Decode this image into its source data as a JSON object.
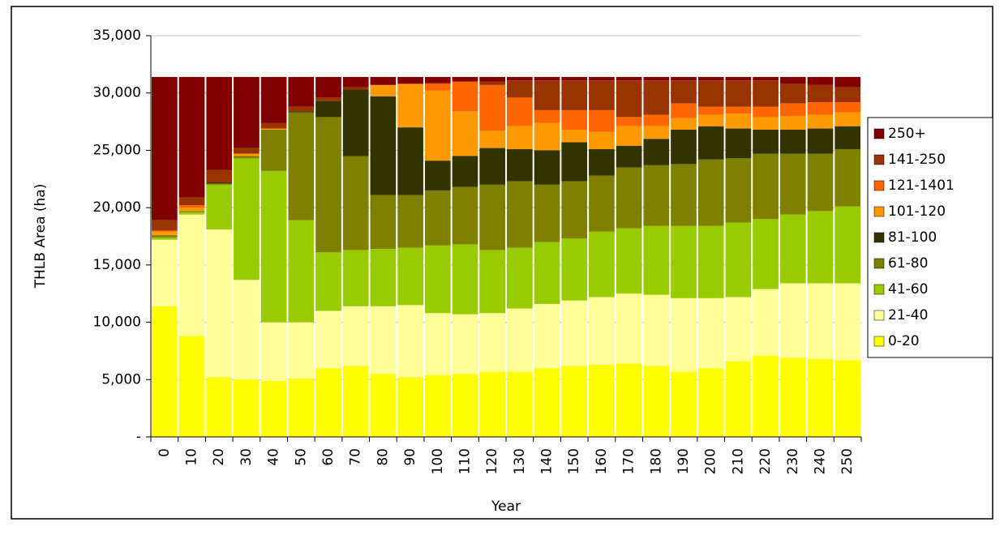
{
  "chart_data": {
    "type": "stacked_bar",
    "y_label": "THLB Area (ha)",
    "x_label": "Year",
    "categories": [
      "0",
      "10",
      "20",
      "30",
      "40",
      "50",
      "60",
      "70",
      "80",
      "90",
      "100",
      "110",
      "120",
      "130",
      "140",
      "150",
      "160",
      "170",
      "180",
      "190",
      "200",
      "210",
      "220",
      "230",
      "240",
      "250"
    ],
    "ylim": [
      0,
      35000
    ],
    "yticks": [
      {
        "value": 0,
        "label": "-"
      },
      {
        "value": 5000,
        "label": "5,000"
      },
      {
        "value": 10000,
        "label": "10,000"
      },
      {
        "value": 15000,
        "label": "15,000"
      },
      {
        "value": 20000,
        "label": "20,000"
      },
      {
        "value": 25000,
        "label": "25,000"
      },
      {
        "value": 30000,
        "label": "30,000"
      },
      {
        "value": 35000,
        "label": "35,000"
      }
    ],
    "grid": true,
    "legend": "right",
    "series": [
      {
        "name": "0-20",
        "color": "#ffff00",
        "values": [
          11400,
          8800,
          5200,
          5000,
          4900,
          5100,
          6000,
          6200,
          5500,
          5200,
          5400,
          5500,
          5700,
          5700,
          6000,
          6200,
          6300,
          6400,
          6200,
          5700,
          6000,
          6600,
          7100,
          6900,
          6800,
          6700
        ]
      },
      {
        "name": "21-40",
        "color": "#ffff99",
        "values": [
          5800,
          10600,
          12900,
          8700,
          5100,
          4900,
          5000,
          5200,
          5900,
          6300,
          5400,
          5200,
          5100,
          5500,
          5600,
          5700,
          5900,
          6100,
          6200,
          6400,
          6100,
          5600,
          5800,
          6500,
          6600,
          6700
        ]
      },
      {
        "name": "41-60",
        "color": "#99cc00",
        "values": [
          200,
          200,
          3900,
          10600,
          13200,
          8900,
          5100,
          4900,
          5000,
          5000,
          5900,
          6100,
          5500,
          5300,
          5400,
          5400,
          5700,
          5700,
          6000,
          6300,
          6300,
          6500,
          6100,
          6000,
          6300,
          6700
        ]
      },
      {
        "name": "61-80",
        "color": "#808000",
        "values": [
          200,
          100,
          100,
          200,
          3600,
          9400,
          11800,
          8200,
          4700,
          4600,
          4800,
          5000,
          5700,
          5800,
          5000,
          5000,
          4900,
          5300,
          5300,
          5400,
          5800,
          5600,
          5700,
          5300,
          5000,
          5000
        ]
      },
      {
        "name": "81-100",
        "color": "#333300",
        "values": [
          0,
          0,
          100,
          0,
          0,
          100,
          1400,
          5800,
          8600,
          5900,
          2600,
          2700,
          3200,
          2800,
          3000,
          3400,
          2300,
          1900,
          2300,
          3000,
          2900,
          2600,
          2100,
          2100,
          2200,
          2000
        ]
      },
      {
        "name": "101-120",
        "color": "#ff9900",
        "values": [
          300,
          300,
          0,
          200,
          100,
          0,
          0,
          0,
          1000,
          3800,
          6100,
          3900,
          1500,
          2000,
          2400,
          1100,
          1500,
          1700,
          1100,
          1000,
          1000,
          1300,
          1100,
          1200,
          1200,
          1200
        ]
      },
      {
        "name": "121-1401",
        "color": "#ff6600",
        "values": [
          100,
          200,
          0,
          0,
          0,
          0,
          0,
          0,
          0,
          0,
          600,
          2600,
          4000,
          2500,
          1100,
          1700,
          1900,
          800,
          1000,
          1300,
          700,
          600,
          900,
          1100,
          1100,
          900
        ]
      },
      {
        "name": "141-250",
        "color": "#993300",
        "values": [
          900,
          700,
          1100,
          500,
          500,
          400,
          300,
          200,
          0,
          0,
          100,
          0,
          300,
          1500,
          2600,
          2600,
          2600,
          3200,
          3000,
          2000,
          2300,
          2300,
          2300,
          1700,
          1500,
          1300
        ]
      },
      {
        "name": "250+",
        "color": "#800000",
        "values": [
          12500,
          10500,
          8100,
          6200,
          4000,
          2600,
          1800,
          900,
          700,
          600,
          500,
          400,
          400,
          300,
          300,
          300,
          300,
          300,
          300,
          300,
          300,
          300,
          300,
          600,
          700,
          900
        ]
      }
    ]
  }
}
